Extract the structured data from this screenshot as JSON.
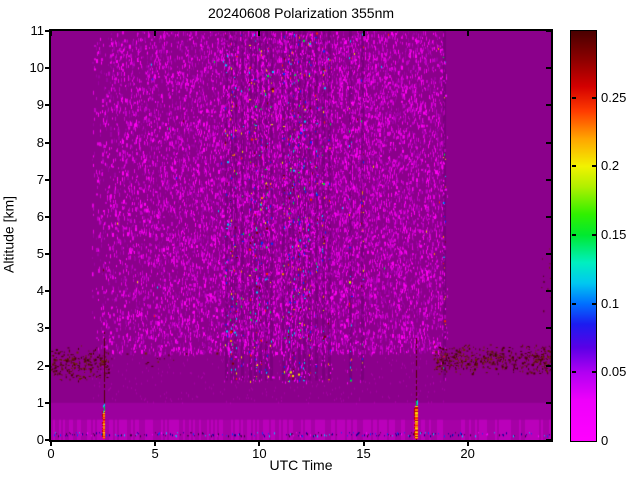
{
  "chart_data": {
    "type": "heatmap",
    "title": "20240608 Polarization 355nm",
    "xlabel": "UTC Time",
    "ylabel": "Altitude [km]",
    "x_range": [
      0,
      24
    ],
    "y_range": [
      0,
      11
    ],
    "x_ticks": [
      0,
      5,
      10,
      15,
      20
    ],
    "x_tick_labels": [
      "0",
      "5",
      "10",
      "15",
      "20"
    ],
    "y_ticks": [
      0,
      1,
      2,
      3,
      4,
      5,
      6,
      7,
      8,
      9,
      10,
      11
    ],
    "y_tick_labels": [
      "0",
      "1",
      "2",
      "3",
      "4",
      "5",
      "6",
      "7",
      "8",
      "9",
      "10",
      "11"
    ],
    "background_color": "#FFFFFF",
    "axis_color": "#000000",
    "colorbar": {
      "range": [
        0,
        0.2986
      ],
      "ticks": [
        0,
        0.05,
        0.1,
        0.15,
        0.2,
        0.25
      ],
      "tick_labels": [
        "0",
        "0.05",
        "0.1",
        "0.15",
        "0.2",
        "0.25"
      ],
      "colormap_stops": [
        {
          "v": 0.0,
          "c": "#FF00FF"
        },
        {
          "v": 0.03,
          "c": "#EE00FB"
        },
        {
          "v": 0.05,
          "c": "#B100F2"
        },
        {
          "v": 0.068,
          "c": "#5A00E6"
        },
        {
          "v": 0.085,
          "c": "#1C1CF0"
        },
        {
          "v": 0.1,
          "c": "#0070FF"
        },
        {
          "v": 0.115,
          "c": "#00C8F0"
        },
        {
          "v": 0.13,
          "c": "#00EFC0"
        },
        {
          "v": 0.15,
          "c": "#00E930"
        },
        {
          "v": 0.165,
          "c": "#30F000"
        },
        {
          "v": 0.185,
          "c": "#B0F000"
        },
        {
          "v": 0.2,
          "c": "#F2F200"
        },
        {
          "v": 0.22,
          "c": "#FFA500"
        },
        {
          "v": 0.24,
          "c": "#FF3C00"
        },
        {
          "v": 0.258,
          "c": "#D40000"
        },
        {
          "v": 0.278,
          "c": "#8C0000"
        },
        {
          "v": 0.2986,
          "c": "#4A0000"
        }
      ]
    },
    "field": {
      "base_color": "#8B008B",
      "bands": [
        {
          "alt": [
            0.55,
            1.0
          ],
          "color": "#9C009E"
        },
        {
          "alt": [
            0.0,
            0.55
          ],
          "color": "#B100B1"
        }
      ],
      "noise_region": {
        "utc": [
          1.8,
          18.9
        ],
        "alt": [
          2.35,
          11.0
        ]
      },
      "density_profile": [
        [
          1.8,
          0.06
        ],
        [
          3.0,
          0.22
        ],
        [
          5.0,
          0.3
        ],
        [
          8.0,
          0.36
        ],
        [
          9.0,
          0.44
        ],
        [
          15.0,
          0.44
        ],
        [
          17.0,
          0.38
        ],
        [
          18.9,
          0.32
        ]
      ],
      "noise_colors": [
        [
          "#9D00A4",
          0.3
        ],
        [
          "#C000C4",
          0.3
        ],
        [
          "#E200DD",
          0.25
        ],
        [
          "#FF00F2",
          0.15
        ]
      ],
      "spec_colors": [
        [
          "#FF00FF",
          0.26
        ],
        [
          "#0033FF",
          0.18
        ],
        [
          "#00CCFF",
          0.14
        ],
        [
          "#00E040",
          0.1
        ],
        [
          "#FFDD00",
          0.09
        ],
        [
          "#FF8800",
          0.08
        ],
        [
          "#FF2200",
          0.07
        ],
        [
          "#7A0000",
          0.08
        ]
      ],
      "streaks": [
        [
          8.4,
          0.45
        ],
        [
          8.62,
          0.7
        ],
        [
          8.85,
          0.5
        ],
        [
          9.15,
          0.3
        ],
        [
          9.55,
          0.55
        ],
        [
          9.8,
          0.8
        ],
        [
          10.05,
          0.6
        ],
        [
          10.3,
          0.7
        ],
        [
          10.55,
          0.4
        ],
        [
          11.15,
          0.7
        ],
        [
          11.4,
          0.9
        ],
        [
          11.62,
          0.8
        ],
        [
          11.88,
          1.0
        ],
        [
          12.12,
          0.85
        ],
        [
          12.38,
          0.7
        ],
        [
          12.7,
          0.45
        ],
        [
          13.05,
          0.55
        ],
        [
          13.35,
          0.3
        ],
        [
          14.35,
          0.5
        ],
        [
          14.95,
          0.35
        ],
        [
          18.88,
          0.4
        ]
      ],
      "streak_alt_top": 11.0,
      "streak_alt_bottom": 1.55,
      "maroon_bands": [
        {
          "utc": [
            0.0,
            2.75
          ],
          "alt": [
            1.55,
            2.55
          ],
          "density": 0.3
        },
        {
          "utc": [
            18.35,
            24.0
          ],
          "alt": [
            1.75,
            2.62
          ],
          "density": 0.34
        },
        {
          "utc": [
            2.75,
            8.3
          ],
          "alt": [
            1.9,
            2.45
          ],
          "density": 0.015
        },
        {
          "utc": [
            23.5,
            24.0
          ],
          "alt": [
            3.4,
            5.6
          ],
          "density": 0.03
        }
      ],
      "maroon_colors": [
        [
          "#4A0000",
          0.4
        ],
        [
          "#5E1800",
          0.3
        ],
        [
          "#6E2A00",
          0.2
        ],
        [
          "#3C0C00",
          0.1
        ]
      ],
      "ground_line": {
        "alt": 0.18,
        "density_left": 0.45,
        "density_right": 0.28,
        "split_utc": 19.0,
        "colors": [
          [
            "#000090",
            0.3
          ],
          [
            "#0040FF",
            0.2
          ],
          [
            "#00CCFF",
            0.15
          ],
          [
            "#38003F",
            0.25
          ],
          [
            "#FF00FF",
            0.1
          ]
        ]
      },
      "events": [
        {
          "utc": 2.52,
          "line_top": 2.9,
          "core_top": 0.78,
          "cap_top": 1.0,
          "width": 2
        },
        {
          "utc": 17.52,
          "line_top": 2.75,
          "core_top": 0.92,
          "cap_top": 1.12,
          "width": 3
        }
      ],
      "core_colors": [
        [
          "#FF2A00",
          0.35
        ],
        [
          "#FF8800",
          0.3
        ],
        [
          "#FFE000",
          0.25
        ],
        [
          "#C40000",
          0.1
        ]
      ],
      "event_line_color": "#560008",
      "cap_green": "#00D040",
      "cap_cyan": "#00CCFF"
    }
  }
}
